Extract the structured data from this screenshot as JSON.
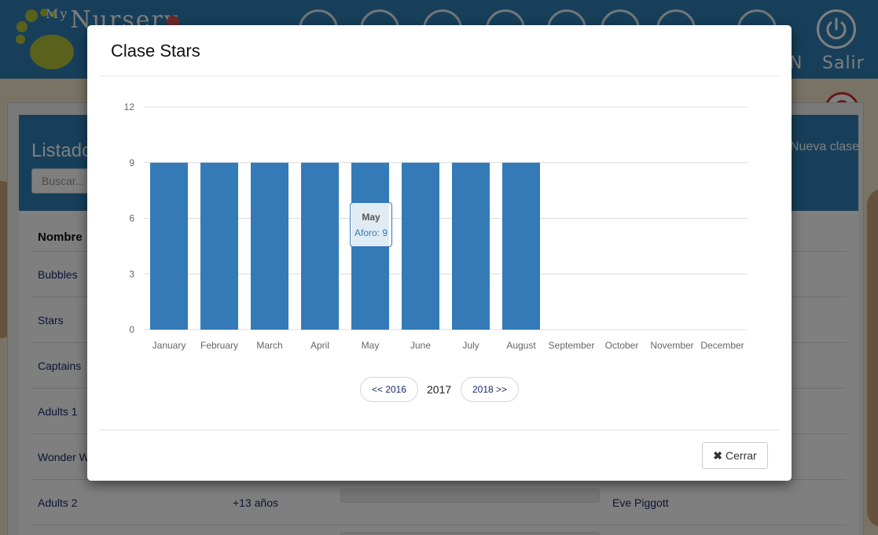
{
  "app": {
    "logo_my": "My",
    "logo_text": "Nursery",
    "nav_partial_label": "N",
    "logout_label": "Salir"
  },
  "background_panel": {
    "title": "Listado",
    "search_placeholder": "Buscar...",
    "new_class_label": "Nueva clase",
    "column_name_header": "Nombre",
    "rows": [
      {
        "name": "Bubbles"
      },
      {
        "name": "Stars"
      },
      {
        "name": "Captains"
      },
      {
        "name": "Adults 1"
      },
      {
        "name": "Wonder W"
      },
      {
        "name": "Adults 2",
        "age": "+13 años",
        "teacher": "Eve Piggott"
      }
    ]
  },
  "modal": {
    "title": "Clase Stars",
    "tooltip": {
      "month": "May",
      "label": "Aforo: 9"
    },
    "prev_year_label": "<< 2016",
    "current_year": "2017",
    "next_year_label": "2018 >>",
    "close_label": "Cerrar"
  },
  "colors": {
    "bar": "#337ab7",
    "header_blue": "#2f7fb5",
    "help_red": "#c9302c"
  },
  "chart_data": {
    "type": "bar",
    "categories": [
      "January",
      "February",
      "March",
      "April",
      "May",
      "June",
      "July",
      "August",
      "September",
      "October",
      "November",
      "December"
    ],
    "series": [
      {
        "values": [
          9,
          9,
          9,
          9,
          9,
          9,
          9,
          9,
          0,
          0,
          0,
          0
        ]
      }
    ],
    "yticks": [
      0,
      3,
      6,
      9,
      12
    ],
    "ylim": [
      0,
      12
    ],
    "grid": true,
    "title": "",
    "xlabel": "",
    "ylabel": ""
  }
}
